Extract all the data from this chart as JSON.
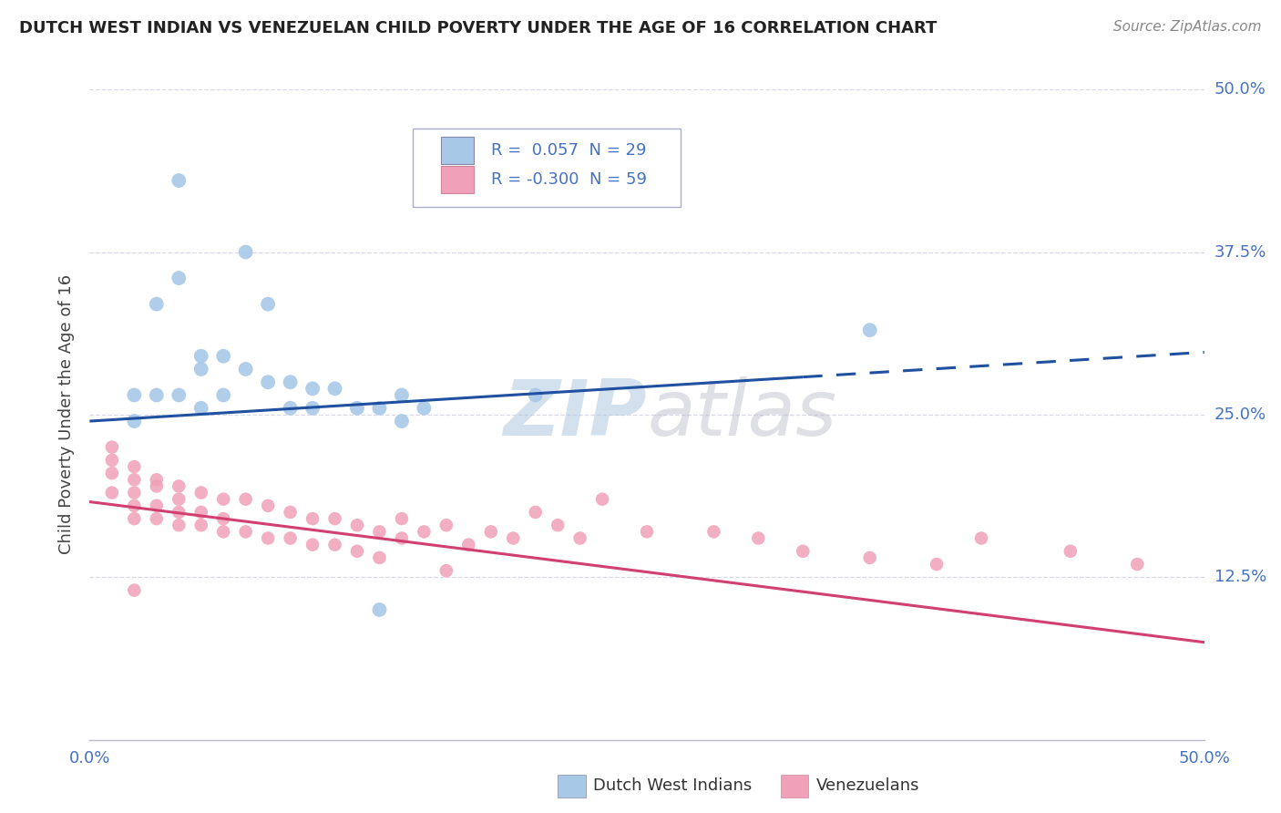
{
  "title": "DUTCH WEST INDIAN VS VENEZUELAN CHILD POVERTY UNDER THE AGE OF 16 CORRELATION CHART",
  "source": "Source: ZipAtlas.com",
  "ylabel": "Child Poverty Under the Age of 16",
  "watermark_zip": "ZIP",
  "watermark_atlas": "atlas",
  "xlim": [
    0,
    0.5
  ],
  "ylim": [
    0,
    0.5
  ],
  "legend_blue_R": "0.057",
  "legend_blue_N": "29",
  "legend_pink_R": "-0.300",
  "legend_pink_N": "59",
  "blue_color": "#a8c8e8",
  "pink_color": "#f0a0b8",
  "blue_line_color": "#2050a0",
  "pink_line_color": "#d04070",
  "background_color": "#ffffff",
  "grid_color": "#d8d8e8",
  "blue_scatter": [
    [
      0.04,
      0.43
    ],
    [
      0.07,
      0.375
    ],
    [
      0.04,
      0.355
    ],
    [
      0.03,
      0.335
    ],
    [
      0.08,
      0.335
    ],
    [
      0.35,
      0.315
    ],
    [
      0.05,
      0.295
    ],
    [
      0.06,
      0.295
    ],
    [
      0.05,
      0.285
    ],
    [
      0.07,
      0.285
    ],
    [
      0.08,
      0.275
    ],
    [
      0.09,
      0.275
    ],
    [
      0.1,
      0.27
    ],
    [
      0.11,
      0.27
    ],
    [
      0.02,
      0.265
    ],
    [
      0.03,
      0.265
    ],
    [
      0.04,
      0.265
    ],
    [
      0.06,
      0.265
    ],
    [
      0.14,
      0.265
    ],
    [
      0.2,
      0.265
    ],
    [
      0.05,
      0.255
    ],
    [
      0.09,
      0.255
    ],
    [
      0.1,
      0.255
    ],
    [
      0.12,
      0.255
    ],
    [
      0.13,
      0.255
    ],
    [
      0.15,
      0.255
    ],
    [
      0.02,
      0.245
    ],
    [
      0.14,
      0.245
    ],
    [
      0.13,
      0.1
    ]
  ],
  "pink_scatter": [
    [
      0.01,
      0.225
    ],
    [
      0.01,
      0.215
    ],
    [
      0.02,
      0.21
    ],
    [
      0.01,
      0.205
    ],
    [
      0.02,
      0.2
    ],
    [
      0.03,
      0.2
    ],
    [
      0.03,
      0.195
    ],
    [
      0.04,
      0.195
    ],
    [
      0.01,
      0.19
    ],
    [
      0.02,
      0.19
    ],
    [
      0.05,
      0.19
    ],
    [
      0.04,
      0.185
    ],
    [
      0.06,
      0.185
    ],
    [
      0.07,
      0.185
    ],
    [
      0.02,
      0.18
    ],
    [
      0.03,
      0.18
    ],
    [
      0.08,
      0.18
    ],
    [
      0.04,
      0.175
    ],
    [
      0.05,
      0.175
    ],
    [
      0.09,
      0.175
    ],
    [
      0.02,
      0.17
    ],
    [
      0.03,
      0.17
    ],
    [
      0.06,
      0.17
    ],
    [
      0.1,
      0.17
    ],
    [
      0.11,
      0.17
    ],
    [
      0.14,
      0.17
    ],
    [
      0.04,
      0.165
    ],
    [
      0.05,
      0.165
    ],
    [
      0.12,
      0.165
    ],
    [
      0.16,
      0.165
    ],
    [
      0.06,
      0.16
    ],
    [
      0.07,
      0.16
    ],
    [
      0.13,
      0.16
    ],
    [
      0.15,
      0.16
    ],
    [
      0.18,
      0.16
    ],
    [
      0.25,
      0.16
    ],
    [
      0.08,
      0.155
    ],
    [
      0.09,
      0.155
    ],
    [
      0.14,
      0.155
    ],
    [
      0.19,
      0.155
    ],
    [
      0.22,
      0.155
    ],
    [
      0.3,
      0.155
    ],
    [
      0.1,
      0.15
    ],
    [
      0.11,
      0.15
    ],
    [
      0.17,
      0.15
    ],
    [
      0.2,
      0.175
    ],
    [
      0.21,
      0.165
    ],
    [
      0.23,
      0.185
    ],
    [
      0.28,
      0.16
    ],
    [
      0.32,
      0.145
    ],
    [
      0.35,
      0.14
    ],
    [
      0.38,
      0.135
    ],
    [
      0.4,
      0.155
    ],
    [
      0.44,
      0.145
    ],
    [
      0.47,
      0.135
    ],
    [
      0.12,
      0.145
    ],
    [
      0.13,
      0.14
    ],
    [
      0.02,
      0.115
    ],
    [
      0.16,
      0.13
    ]
  ],
  "blue_line_x0": 0.0,
  "blue_line_y0": 0.245,
  "blue_line_x1": 0.5,
  "blue_line_y1": 0.298,
  "pink_line_x0": 0.0,
  "pink_line_y0": 0.183,
  "pink_line_x1": 0.5,
  "pink_line_y1": 0.075
}
